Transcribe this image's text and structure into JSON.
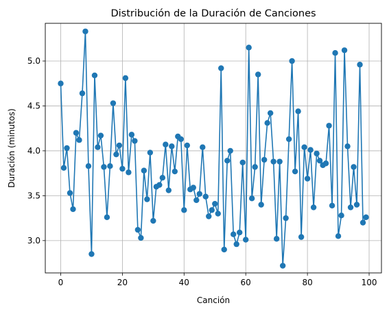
{
  "chart_data": {
    "type": "line",
    "title": "Distribución de la Duración de Canciones",
    "xlabel": "Canción",
    "ylabel": "Duración (minutos)",
    "xlim": [
      -5,
      104
    ],
    "ylim": [
      2.64,
      5.42
    ],
    "xticks": [
      0,
      20,
      40,
      60,
      80,
      100
    ],
    "yticks": [
      3.0,
      3.5,
      4.0,
      4.5,
      5.0
    ],
    "ytick_labels": [
      "3.0",
      "3.5",
      "4.0",
      "4.5",
      "5.0"
    ],
    "grid": true,
    "marker": "circle",
    "color": "#1f77b4",
    "series": [
      {
        "x": [
          0,
          1,
          2,
          3,
          4,
          5,
          6,
          7,
          8,
          9,
          10,
          11,
          12,
          13,
          14,
          15,
          16,
          17,
          18,
          19,
          20,
          21,
          22,
          23,
          24,
          25,
          26,
          27,
          28,
          29,
          30,
          31,
          32,
          33,
          34,
          35,
          36,
          37,
          38,
          39,
          40,
          41,
          42,
          43,
          44,
          45,
          46,
          47,
          48,
          49,
          50,
          51,
          52,
          53,
          54,
          55,
          56,
          57,
          58,
          59,
          60,
          61,
          62,
          63,
          64,
          65,
          66,
          67,
          68,
          69,
          70,
          71,
          72,
          73,
          74,
          75,
          76,
          77,
          78,
          79,
          80,
          81,
          82,
          83,
          84,
          85,
          86,
          87,
          88,
          89,
          90,
          91,
          92,
          93,
          94,
          95,
          96,
          97,
          98,
          99
        ],
        "values": [
          4.75,
          3.81,
          4.03,
          3.53,
          3.35,
          4.2,
          4.12,
          4.64,
          5.33,
          3.83,
          2.85,
          4.84,
          4.04,
          4.17,
          3.82,
          3.26,
          3.83,
          4.53,
          3.96,
          4.06,
          3.8,
          4.81,
          3.76,
          4.18,
          4.11,
          3.12,
          3.03,
          3.78,
          3.46,
          3.98,
          3.22,
          3.6,
          3.62,
          3.7,
          4.07,
          3.56,
          4.05,
          3.77,
          4.16,
          4.13,
          3.34,
          4.06,
          3.57,
          3.59,
          3.45,
          3.52,
          4.04,
          3.49,
          3.27,
          3.34,
          3.41,
          3.3,
          4.92,
          2.9,
          3.89,
          4.0,
          3.07,
          2.96,
          3.09,
          3.87,
          3.01,
          5.15,
          3.47,
          3.82,
          4.85,
          3.4,
          3.9,
          4.31,
          4.42,
          3.88,
          3.02,
          3.88,
          2.72,
          3.25,
          4.13,
          5.0,
          3.77,
          4.44,
          3.04,
          4.04,
          3.69,
          4.01,
          3.37,
          3.97,
          3.89,
          3.84,
          3.86,
          4.28,
          3.39,
          5.09,
          3.05,
          3.28,
          5.12,
          4.05,
          3.37,
          3.82,
          3.4,
          4.96,
          3.2,
          3.26
        ]
      }
    ]
  }
}
